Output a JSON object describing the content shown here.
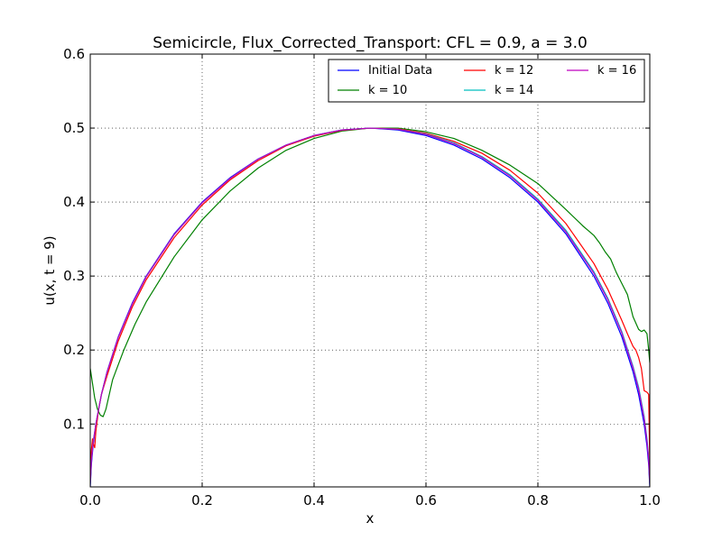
{
  "chart_data": {
    "type": "line",
    "title": "Semicircle, Flux_Corrected_Transport: CFL = 0.9, a = 3.0",
    "xlabel": "x",
    "ylabel": "u(x, t = 9)",
    "xlim": [
      0.0,
      1.0
    ],
    "ylim": [
      0.015,
      0.6
    ],
    "xticks": [
      "0.0",
      "0.2",
      "0.4",
      "0.6",
      "0.8",
      "1.0"
    ],
    "yticks": [
      "0.1",
      "0.2",
      "0.3",
      "0.4",
      "0.5",
      "0.6"
    ],
    "grid": true,
    "legend_position": "top-right",
    "series": [
      {
        "name": "Initial Data",
        "color": "#0000ff",
        "x": [
          0,
          0.002,
          0.005,
          0.01,
          0.02,
          0.03,
          0.05,
          0.075,
          0.1,
          0.15,
          0.2,
          0.25,
          0.3,
          0.35,
          0.4,
          0.45,
          0.5,
          0.55,
          0.6,
          0.65,
          0.7,
          0.75,
          0.8,
          0.85,
          0.9,
          0.925,
          0.95,
          0.97,
          0.98,
          0.99,
          0.995,
          0.998,
          1.0
        ],
        "y": [
          0.015,
          0.045,
          0.07,
          0.0995,
          0.14,
          0.1706,
          0.2179,
          0.2634,
          0.3,
          0.3571,
          0.4,
          0.433,
          0.4583,
          0.477,
          0.4899,
          0.4975,
          0.5,
          0.4975,
          0.4899,
          0.477,
          0.4583,
          0.433,
          0.4,
          0.3571,
          0.3,
          0.2634,
          0.2179,
          0.1706,
          0.14,
          0.0995,
          0.07,
          0.045,
          0.015
        ]
      },
      {
        "name": "k = 10",
        "color": "#008000",
        "x": [
          0,
          0.004,
          0.008,
          0.013,
          0.018,
          0.023,
          0.028,
          0.04,
          0.06,
          0.08,
          0.1,
          0.15,
          0.2,
          0.25,
          0.3,
          0.35,
          0.4,
          0.45,
          0.5,
          0.55,
          0.6,
          0.65,
          0.7,
          0.75,
          0.8,
          0.85,
          0.88,
          0.9,
          0.91,
          0.92,
          0.93,
          0.94,
          0.95,
          0.96,
          0.97,
          0.98,
          0.985,
          0.99,
          0.995,
          0.998,
          1.0
        ],
        "y": [
          0.175,
          0.155,
          0.135,
          0.12,
          0.112,
          0.11,
          0.12,
          0.16,
          0.2,
          0.235,
          0.265,
          0.326,
          0.376,
          0.415,
          0.446,
          0.47,
          0.486,
          0.496,
          0.5,
          0.5,
          0.495,
          0.486,
          0.47,
          0.45,
          0.425,
          0.39,
          0.368,
          0.355,
          0.345,
          0.333,
          0.323,
          0.305,
          0.29,
          0.275,
          0.245,
          0.228,
          0.225,
          0.227,
          0.222,
          0.2,
          0.183
        ]
      },
      {
        "name": "k = 12",
        "color": "#ff0000",
        "x": [
          0,
          0.002,
          0.004,
          0.006,
          0.008,
          0.01,
          0.015,
          0.02,
          0.03,
          0.05,
          0.075,
          0.1,
          0.15,
          0.2,
          0.25,
          0.3,
          0.35,
          0.4,
          0.45,
          0.5,
          0.55,
          0.6,
          0.65,
          0.7,
          0.75,
          0.8,
          0.85,
          0.9,
          0.925,
          0.95,
          0.96,
          0.97,
          0.975,
          0.98,
          0.985,
          0.99,
          0.995,
          0.998,
          1.0
        ],
        "y": [
          0.03,
          0.065,
          0.08,
          0.072,
          0.068,
          0.09,
          0.12,
          0.14,
          0.165,
          0.212,
          0.258,
          0.295,
          0.352,
          0.396,
          0.43,
          0.456,
          0.476,
          0.489,
          0.497,
          0.5,
          0.499,
          0.493,
          0.482,
          0.466,
          0.443,
          0.412,
          0.371,
          0.317,
          0.282,
          0.24,
          0.222,
          0.205,
          0.2,
          0.19,
          0.175,
          0.145,
          0.143,
          0.14,
          0.045
        ]
      },
      {
        "name": "k = 14",
        "color": "#00bfbf",
        "x": [
          0,
          0.002,
          0.005,
          0.01,
          0.02,
          0.03,
          0.05,
          0.075,
          0.1,
          0.15,
          0.2,
          0.25,
          0.3,
          0.35,
          0.4,
          0.45,
          0.5,
          0.55,
          0.6,
          0.65,
          0.7,
          0.75,
          0.8,
          0.85,
          0.9,
          0.925,
          0.95,
          0.97,
          0.98,
          0.99,
          0.995,
          0.998,
          1.0
        ],
        "y": [
          0.02,
          0.05,
          0.075,
          0.1,
          0.14,
          0.17,
          0.217,
          0.262,
          0.299,
          0.356,
          0.399,
          0.432,
          0.458,
          0.477,
          0.49,
          0.4975,
          0.5,
          0.4985,
          0.492,
          0.48,
          0.4615,
          0.437,
          0.404,
          0.362,
          0.306,
          0.27,
          0.225,
          0.178,
          0.15,
          0.11,
          0.08,
          0.055,
          0.02
        ]
      },
      {
        "name": "k = 16",
        "color": "#bf00bf",
        "x": [
          0,
          0.002,
          0.005,
          0.01,
          0.02,
          0.03,
          0.05,
          0.075,
          0.1,
          0.15,
          0.2,
          0.25,
          0.3,
          0.35,
          0.4,
          0.45,
          0.5,
          0.55,
          0.6,
          0.65,
          0.7,
          0.75,
          0.8,
          0.85,
          0.9,
          0.925,
          0.95,
          0.97,
          0.98,
          0.99,
          0.995,
          0.998,
          1.0
        ],
        "y": [
          0.02,
          0.05,
          0.074,
          0.1,
          0.14,
          0.17,
          0.217,
          0.262,
          0.299,
          0.356,
          0.399,
          0.432,
          0.458,
          0.477,
          0.49,
          0.4975,
          0.5,
          0.4983,
          0.4915,
          0.479,
          0.4605,
          0.4355,
          0.4025,
          0.36,
          0.304,
          0.268,
          0.223,
          0.176,
          0.147,
          0.107,
          0.077,
          0.052,
          0.02
        ]
      }
    ]
  }
}
